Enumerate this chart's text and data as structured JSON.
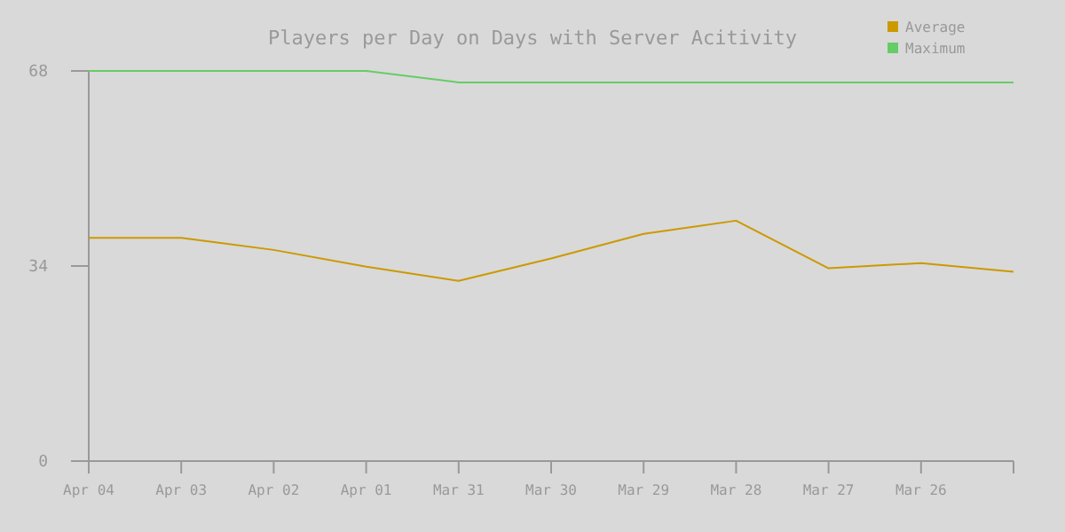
{
  "chart_data": {
    "type": "line",
    "title": "Players per Day on Days with Server Acitivity",
    "categories": [
      "Apr 04",
      "Apr 03",
      "Apr 02",
      "Apr 01",
      "Mar 31",
      "Mar 30",
      "Mar 29",
      "Mar 28",
      "Mar 27",
      "Mar 26",
      null
    ],
    "series": [
      {
        "name": "Average",
        "color": "#cc9900",
        "values": [
          38.9,
          38.9,
          36.8,
          33.9,
          31.4,
          35.3,
          39.6,
          41.9,
          33.6,
          34.5,
          33.0
        ]
      },
      {
        "name": "Maximum",
        "color": "#66cc66",
        "values": [
          68,
          68,
          68,
          68,
          66,
          66,
          66,
          66,
          66,
          66,
          66
        ]
      }
    ],
    "ylim": [
      0,
      68
    ],
    "yticks": [
      0,
      34,
      68
    ],
    "legend": "top right",
    "grid": false
  }
}
